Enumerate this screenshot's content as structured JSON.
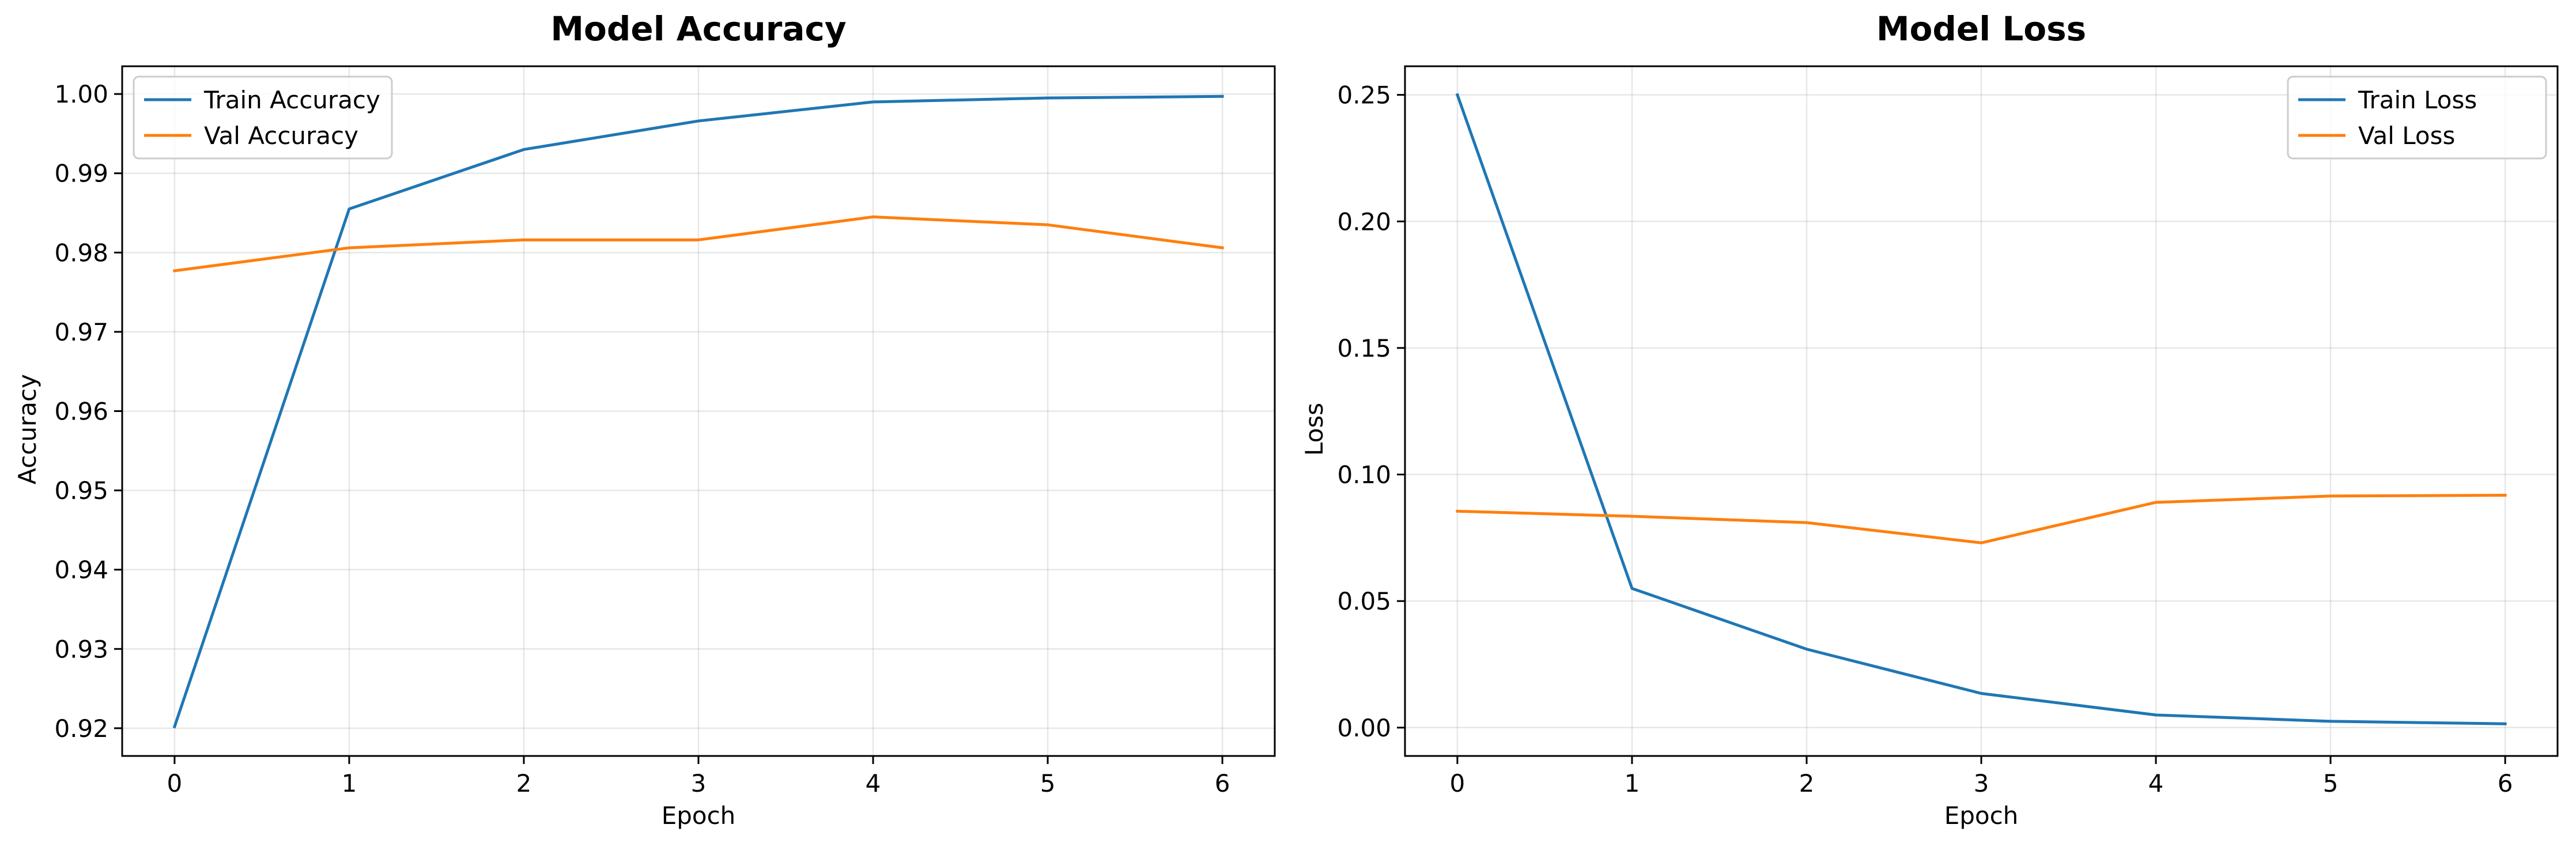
{
  "chart_data": [
    {
      "type": "line",
      "title": "Model Accuracy",
      "xlabel": "Epoch",
      "ylabel": "Accuracy",
      "x": [
        0,
        1,
        2,
        3,
        4,
        5,
        6
      ],
      "xticks": [
        "0",
        "1",
        "2",
        "3",
        "4",
        "5",
        "6"
      ],
      "yticks": [
        "0.92",
        "0.93",
        "0.94",
        "0.95",
        "0.96",
        "0.97",
        "0.98",
        "0.99",
        "1.00"
      ],
      "xlim": [
        -0.3,
        6.3
      ],
      "ylim": [
        0.9165,
        1.0035
      ],
      "grid": true,
      "legend_position": "upper-left",
      "series": [
        {
          "name": "Train Accuracy",
          "color": "#1f77b4",
          "values": [
            0.9202,
            0.9855,
            0.993,
            0.9966,
            0.999,
            0.9995,
            0.9997
          ]
        },
        {
          "name": "Val Accuracy",
          "color": "#ff7f0e",
          "values": [
            0.9777,
            0.9806,
            0.9816,
            0.9816,
            0.9845,
            0.9835,
            0.9806
          ]
        }
      ]
    },
    {
      "type": "line",
      "title": "Model Loss",
      "xlabel": "Epoch",
      "ylabel": "Loss",
      "x": [
        0,
        1,
        2,
        3,
        4,
        5,
        6
      ],
      "xticks": [
        "0",
        "1",
        "2",
        "3",
        "4",
        "5",
        "6"
      ],
      "yticks": [
        "0.00",
        "0.05",
        "0.10",
        "0.15",
        "0.20",
        "0.25"
      ],
      "xlim": [
        -0.3,
        6.3
      ],
      "ylim": [
        -0.0112,
        0.2613
      ],
      "grid": true,
      "legend_position": "upper-right",
      "series": [
        {
          "name": "Train Loss",
          "color": "#1f77b4",
          "values": [
            0.25,
            0.055,
            0.031,
            0.0135,
            0.005,
            0.0025,
            0.0015
          ]
        },
        {
          "name": "Val Loss",
          "color": "#ff7f0e",
          "values": [
            0.0855,
            0.0835,
            0.081,
            0.073,
            0.089,
            0.0915,
            0.0918
          ]
        }
      ]
    }
  ]
}
